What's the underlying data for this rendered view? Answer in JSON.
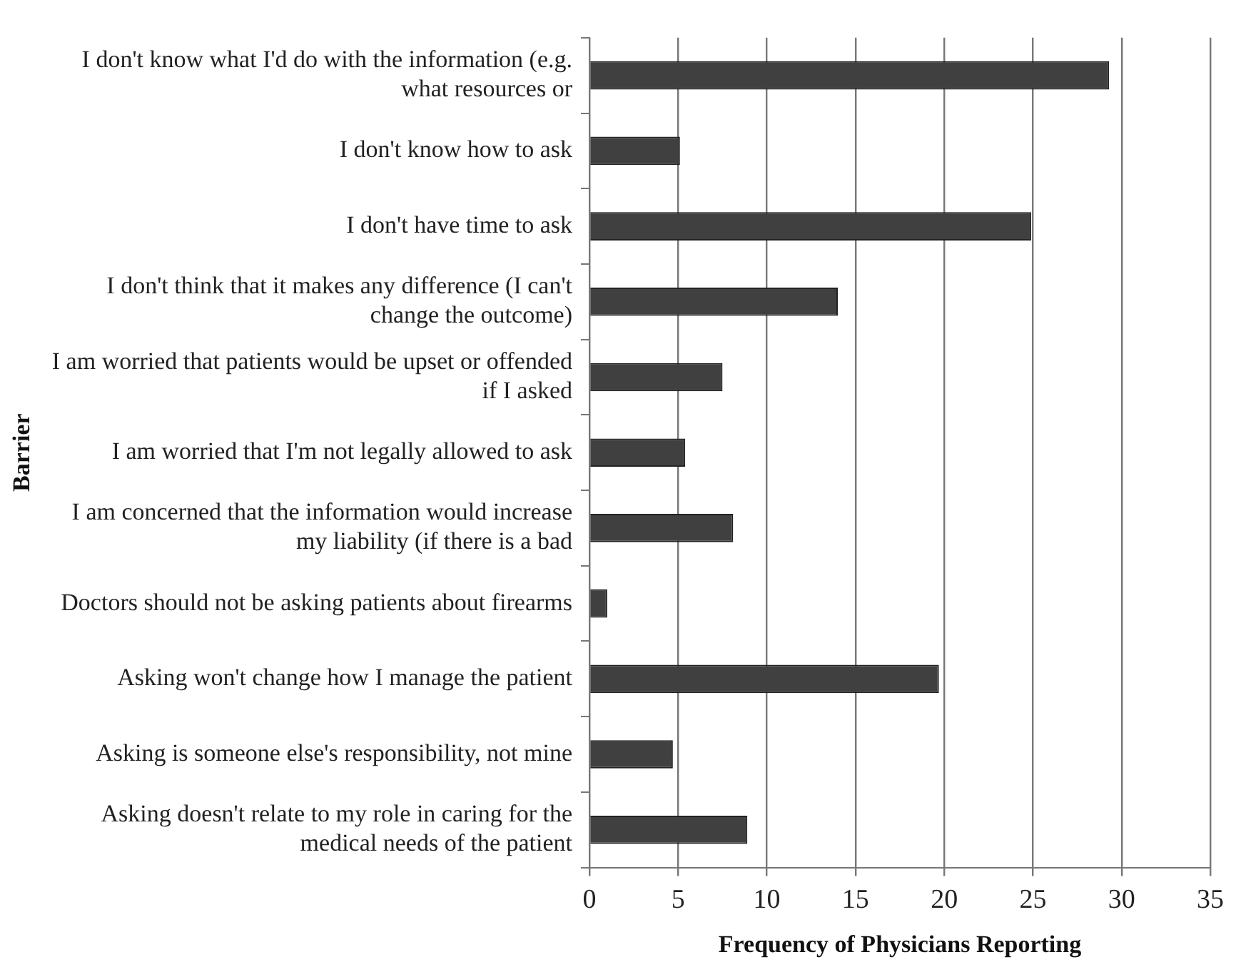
{
  "chart_data": {
    "type": "bar",
    "orientation": "horizontal",
    "xlabel": "Frequency of Physicians Reporting",
    "ylabel": "Barrier",
    "categories": [
      "I don't know what I'd do with the information (e.g. what resources or",
      "I don't know how to ask",
      "I don't have time to ask",
      "I don't think that it makes any difference (I can't change the outcome)",
      "I am worried that patients would be upset or offended if I asked",
      "I am worried that I'm not legally allowed to ask",
      "I am concerned that the information would increase my liability (if there is a bad",
      "Doctors should not be asking patients about firearms",
      "Asking won't change how I manage the patient",
      "Asking is someone else's responsibility, not mine",
      "Asking doesn't relate to my role in caring for the medical needs of the patient"
    ],
    "values": [
      29.3,
      5.1,
      24.9,
      14.0,
      7.5,
      5.4,
      8.1,
      1.0,
      19.7,
      4.7,
      8.9
    ],
    "color": "#404040",
    "xlim": [
      0,
      35
    ],
    "xticks": [
      0,
      5,
      10,
      15,
      20,
      25,
      30,
      35
    ],
    "grid": "x",
    "legend": false
  }
}
